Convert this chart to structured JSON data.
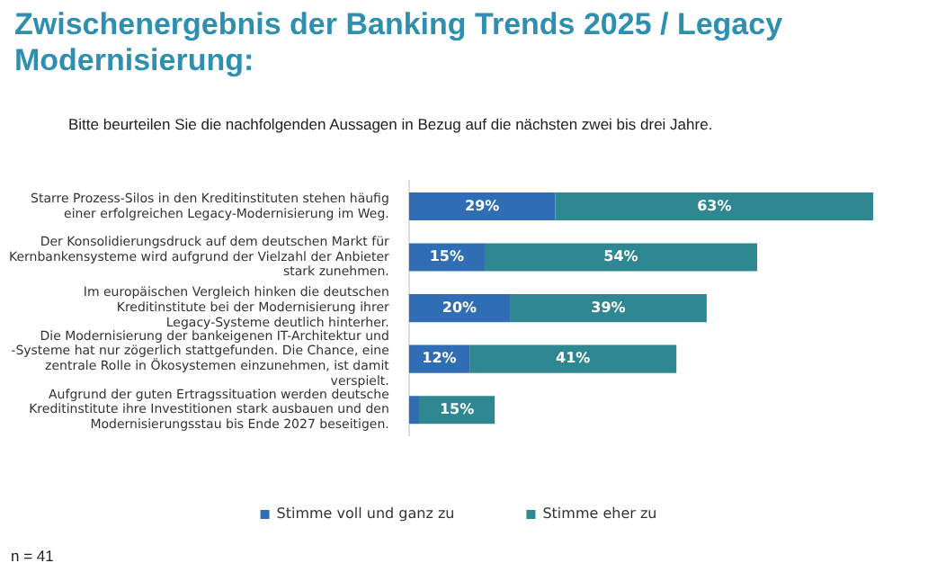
{
  "chart_data": {
    "type": "bar",
    "orientation": "horizontal",
    "stacked": true,
    "title": "Zwischenergebnis der Banking Trends 2025 / Legacy Modernisierung:",
    "subtitle": "Bitte beurteilen Sie die nachfolgenden Aussagen in Bezug auf die nächsten zwei bis drei Jahre.",
    "categories": [
      "Starre Prozess-Silos in den Kreditinstituten stehen häufig einer erfolgreichen Legacy-Modernisierung im Weg.",
      "Der Konsolidierungsdruck auf dem deutschen Markt für Kernbankensysteme wird aufgrund der Vielzahl der Anbieter stark zunehmen.",
      "Im europäischen Vergleich hinken die deutschen Kreditinstitute bei der Modernisierung ihrer Legacy-Systeme deutlich hinterher.",
      "Die Modernisierung der bankeigenen IT-Architektur und -Systeme hat nur zögerlich stattgefunden. Die Chance, eine zentrale Rolle in Ökosystemen einzunehmen, ist damit verspielt.",
      "Aufgrund der guten Ertragssituation werden deutsche Kreditinstitute ihre Investitionen stark ausbauen und den Modernisierungsstau bis Ende 2027 beseitigen."
    ],
    "series": [
      {
        "name": "Stimme voll und ganz zu",
        "color": "#2f6db4",
        "values": [
          29,
          15,
          20,
          12,
          2
        ],
        "value_labels": [
          "29%",
          "15%",
          "20%",
          "12%",
          null
        ]
      },
      {
        "name": "Stimme eher zu",
        "color": "#2f8891",
        "values": [
          63,
          54,
          39,
          41,
          15
        ],
        "value_labels": [
          "63%",
          "54%",
          "39%",
          "41%",
          "15%"
        ]
      }
    ],
    "legend": "bottom",
    "annotations": [
      "n = 41"
    ]
  }
}
